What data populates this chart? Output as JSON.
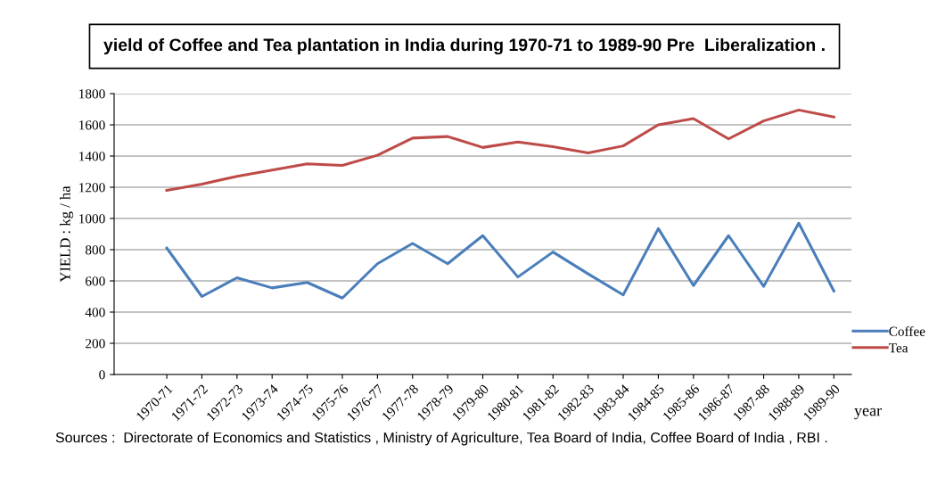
{
  "chart_data": {
    "type": "line",
    "title": "yield of Coffee and Tea plantation in India during 1970-71 to 1989-90 Pre  Liberalization .",
    "xlabel": "year",
    "ylabel": "YIELD : kg / ha",
    "categories": [
      "1970-71",
      "1971-72",
      "1972-73",
      "1973-74",
      "1974-75",
      "1975-76",
      "1976-77",
      "1977-78",
      "1978-79",
      "1979-80",
      "1980-81",
      "1981-82",
      "1982-83",
      "1983-84",
      "1984-85",
      "1985-86",
      "1986-87",
      "1987-88",
      "1988-89",
      "1989-90"
    ],
    "series": [
      {
        "name": "Coffee",
        "color": "#4a7ebb",
        "values": [
          810,
          500,
          620,
          555,
          590,
          490,
          710,
          840,
          710,
          890,
          625,
          785,
          645,
          510,
          935,
          570,
          890,
          565,
          970,
          535
        ]
      },
      {
        "name": "Tea",
        "color": "#be4b48",
        "values": [
          1180,
          1220,
          1270,
          1310,
          1350,
          1340,
          1405,
          1515,
          1525,
          1455,
          1490,
          1460,
          1420,
          1465,
          1600,
          1640,
          1510,
          1625,
          1695,
          1650
        ]
      }
    ],
    "ylim": [
      0,
      1800
    ],
    "yticks": [
      0,
      200,
      400,
      600,
      800,
      1000,
      1200,
      1400,
      1600,
      1800
    ],
    "grid": "y",
    "legend": "right",
    "marker": "none",
    "line_style": "solid",
    "annotations": [
      "Sources :  Directorate of Economics and Statistics , Ministry of Agriculture, Tea Board of India, Coffee Board of India , RBI ."
    ]
  }
}
